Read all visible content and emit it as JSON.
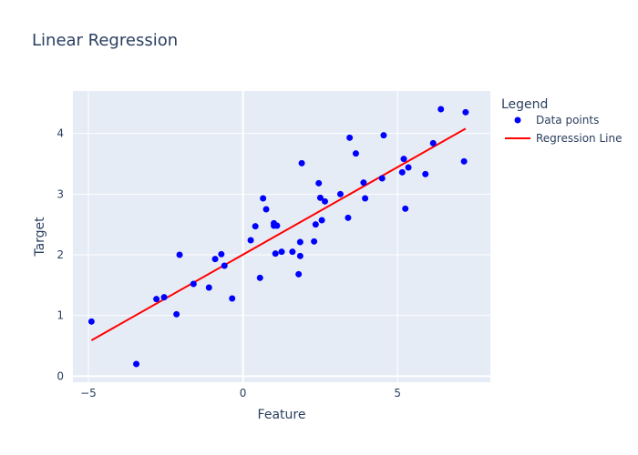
{
  "chart_data": {
    "type": "scatter",
    "title": "Linear Regression",
    "xlabel": "Feature",
    "ylabel": "Target",
    "xlim": [
      -5.5,
      8
    ],
    "ylim": [
      -0.1,
      4.7
    ],
    "x_ticks": [
      -5,
      0,
      5
    ],
    "y_ticks": [
      0,
      1,
      2,
      3,
      4
    ],
    "grid": true,
    "legend": {
      "title": "Legend",
      "placement": "right",
      "entries": [
        "Data points",
        "Regression Line"
      ]
    },
    "colors": {
      "points": "#0000ff",
      "line": "#ff0000",
      "plot_bg": "#e5ecf6"
    },
    "series": [
      {
        "name": "Data points",
        "kind": "markers",
        "x": [
          -4.9,
          -3.45,
          -2.8,
          -2.55,
          -2.15,
          -2.05,
          -1.6,
          -1.1,
          -0.9,
          -0.7,
          -0.6,
          -0.35,
          0.25,
          0.4,
          0.55,
          0.65,
          0.75,
          1.0,
          1.0,
          1.05,
          1.1,
          1.25,
          1.6,
          1.8,
          1.85,
          1.85,
          1.9,
          2.3,
          2.35,
          2.45,
          2.5,
          2.55,
          2.65,
          3.15,
          3.4,
          3.45,
          3.65,
          3.9,
          3.95,
          4.5,
          4.55,
          5.15,
          5.2,
          5.25,
          5.35,
          5.9,
          6.15,
          6.4,
          7.15,
          7.2
        ],
        "y": [
          0.9,
          0.2,
          1.27,
          1.3,
          1.02,
          2.0,
          1.52,
          1.46,
          1.93,
          2.01,
          1.82,
          1.28,
          2.24,
          2.47,
          1.62,
          2.93,
          2.75,
          2.52,
          2.48,
          2.02,
          2.48,
          2.05,
          2.05,
          1.68,
          2.21,
          1.98,
          3.51,
          2.22,
          2.5,
          3.18,
          2.94,
          2.57,
          2.88,
          3.0,
          2.61,
          3.93,
          3.67,
          3.19,
          2.93,
          3.26,
          3.97,
          3.36,
          3.58,
          2.76,
          3.44,
          3.33,
          3.84,
          4.4,
          3.54,
          4.35
        ]
      },
      {
        "name": "Regression Line",
        "kind": "line",
        "x": [
          -4.9,
          7.2
        ],
        "y": [
          0.59,
          4.08
        ]
      }
    ]
  }
}
